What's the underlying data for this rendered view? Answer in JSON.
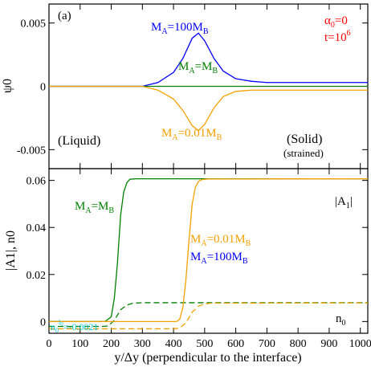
{
  "chart_data": [
    {
      "type": "line",
      "panel_label": "(a)",
      "ylabel": "ψ0",
      "ylim": [
        -0.0065,
        0.0065
      ],
      "xlim": [
        0,
        1024
      ],
      "yticks": [
        {
          "value": 0.005,
          "label": "0.005"
        },
        {
          "value": 0,
          "label": "0"
        },
        {
          "value": -0.005,
          "label": "-0.005"
        }
      ],
      "series": [
        {
          "name": "MA=100MB",
          "color": "#0000ff",
          "x": [
            0,
            300,
            350,
            400,
            430,
            460,
            480,
            500,
            530,
            560,
            600,
            650,
            700,
            800,
            1024
          ],
          "y": [
            0,
            0,
            0.0003,
            0.0011,
            0.0022,
            0.0038,
            0.0042,
            0.0036,
            0.0022,
            0.0012,
            0.0006,
            0.0004,
            0.0003,
            0.0003,
            0.0003
          ]
        },
        {
          "name": "MA=MB",
          "color": "#008000",
          "x": [
            0,
            1024
          ],
          "y": [
            0,
            0
          ]
        },
        {
          "name": "MA=0.01MB",
          "color": "#f5a000",
          "x": [
            0,
            300,
            350,
            400,
            430,
            460,
            480,
            500,
            530,
            560,
            600,
            650,
            700,
            800,
            1024
          ],
          "y": [
            0,
            0,
            -0.0003,
            -0.001,
            -0.0019,
            -0.0031,
            -0.0035,
            -0.003,
            -0.0017,
            -0.0008,
            -0.0004,
            -0.0003,
            -0.0003,
            -0.0003,
            -0.0003
          ]
        }
      ],
      "annotations": {
        "params_alpha": {
          "base": "α",
          "sub": "0",
          "rest": "=0"
        },
        "params_t": {
          "base": "t=10",
          "sup": "6"
        },
        "liquid": "(Liquid)",
        "solid": "(Solid)",
        "strained": "(strained)",
        "label_100": {
          "a": "M",
          "a_sub": "A",
          "mid": "=100M",
          "b_sub": "B"
        },
        "label_1": {
          "a": "M",
          "a_sub": "A",
          "mid": "=M",
          "b_sub": "B"
        },
        "label_001": {
          "a": "M",
          "a_sub": "A",
          "mid": "=0.01M",
          "b_sub": "B"
        }
      },
      "colors": {
        "red": "#ff0000"
      }
    },
    {
      "type": "line",
      "ylabel": "|A1|, n0",
      "ylim": [
        -0.005,
        0.065
      ],
      "xlim": [
        0,
        1024
      ],
      "xlabel": "y/Δy (perpendicular to the interface)",
      "yticks": [
        {
          "value": 0.06,
          "label": "0.06"
        },
        {
          "value": 0.04,
          "label": "0.04"
        },
        {
          "value": 0.02,
          "label": "0.02"
        },
        {
          "value": 0,
          "label": "0"
        }
      ],
      "xticks": [
        {
          "value": 0,
          "label": "0"
        },
        {
          "value": 100,
          "label": "100"
        },
        {
          "value": 200,
          "label": "200"
        },
        {
          "value": 300,
          "label": "300"
        },
        {
          "value": 400,
          "label": "400"
        },
        {
          "value": 500,
          "label": "500"
        },
        {
          "value": 600,
          "label": "600"
        },
        {
          "value": 700,
          "label": "700"
        },
        {
          "value": 800,
          "label": "800"
        },
        {
          "value": 900,
          "label": "900"
        },
        {
          "value": 1000,
          "label": "1000"
        }
      ],
      "series": [
        {
          "name": "|A1| MA=MB",
          "color": "#008000",
          "dash": false,
          "x": [
            0,
            180,
            200,
            210,
            220,
            230,
            240,
            250,
            260,
            280,
            1024
          ],
          "y": [
            0,
            0,
            0.002,
            0.01,
            0.025,
            0.045,
            0.055,
            0.059,
            0.0605,
            0.0607,
            0.0607
          ]
        },
        {
          "name": "n0 MA=MB",
          "color": "#008000",
          "dash": true,
          "x": [
            0,
            170,
            190,
            210,
            230,
            250,
            270,
            300,
            1024
          ],
          "y": [
            -0.0021,
            -0.0021,
            -0.0019,
            0.0005,
            0.005,
            0.007,
            0.0078,
            0.008,
            0.008
          ]
        },
        {
          "name": "|A1| MA=0.01MB",
          "color": "#f5a000",
          "dash": false,
          "x": [
            0,
            410,
            420,
            430,
            440,
            450,
            460,
            470,
            480,
            490,
            510,
            1024
          ],
          "y": [
            0,
            0,
            0.001,
            0.006,
            0.018,
            0.035,
            0.05,
            0.057,
            0.0595,
            0.0603,
            0.0606,
            0.0607
          ]
        },
        {
          "name": "n0 MA=0.01MB",
          "color": "#f5a000",
          "dash": true,
          "x": [
            0,
            400,
            420,
            440,
            460,
            480,
            500,
            520,
            1024
          ],
          "y": [
            -0.0031,
            -0.0031,
            -0.0028,
            -0.0005,
            0.004,
            0.0065,
            0.0075,
            0.0078,
            0.0079
          ]
        }
      ],
      "annotations": {
        "a1_label": {
          "pre": "|A",
          "sub": "1",
          "post": "|"
        },
        "n0_label": {
          "base": "n",
          "sub": "0"
        },
        "n0_init": {
          "base": "n",
          "sub": "0",
          "sup": "l",
          "supsub": "0",
          "rest": "=-0.0021"
        },
        "label_1": {
          "a": "M",
          "a_sub": "A",
          "mid": "=M",
          "b_sub": "B"
        },
        "label_001": {
          "a": "M",
          "a_sub": "A",
          "mid": "=0.01M",
          "b_sub": "B"
        },
        "label_100": {
          "a": "M",
          "a_sub": "A",
          "mid": "=100M",
          "b_sub": "B"
        }
      },
      "colors": {
        "cyan": "#00c8d8"
      }
    }
  ]
}
